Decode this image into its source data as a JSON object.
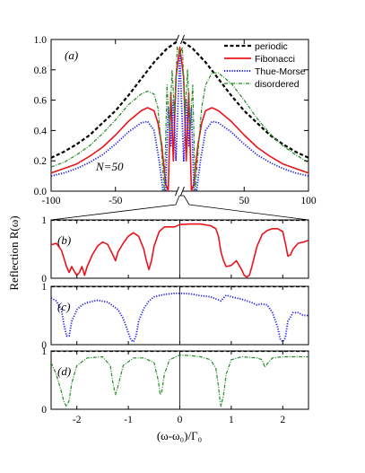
{
  "colors": {
    "periodic": "#000000",
    "fibonacci": "#e8141c",
    "thue_morse": "#1a1ae8",
    "disordered": "#228b22"
  },
  "labels": {
    "ylabel": "Reflection R(ω)",
    "xlabel": "(ω-ω₀)/Γ₀",
    "N": "N=50"
  },
  "chart_data": [
    {
      "id": "a",
      "type": "line",
      "panel_label": "(a)",
      "annotation": "N=50",
      "xlim": [
        -100,
        100
      ],
      "ylim": [
        0,
        1.0
      ],
      "xticks": [
        -100,
        -50,
        0,
        50,
        100
      ],
      "xtick_labels": [
        "-100",
        "-50",
        "",
        "50",
        "100"
      ],
      "yticks": [
        0,
        0.2,
        0.4,
        0.6,
        0.8,
        1.0
      ],
      "ytick_labels": [
        "0.0",
        "0.2",
        "0.4",
        "0.6",
        "0.8",
        "1.0"
      ],
      "axis_break": "at x=0 on both horizontal axes",
      "legend_position": "top-right",
      "series": [
        {
          "name": "periodic",
          "key": "periodic",
          "style": "dashed",
          "x": [
            -100,
            -90,
            -80,
            -70,
            -60,
            -50,
            -40,
            -30,
            -20,
            -10,
            0,
            10,
            20,
            30,
            40,
            50,
            60,
            70,
            80,
            90,
            100
          ],
          "y": [
            0.22,
            0.26,
            0.31,
            0.37,
            0.45,
            0.53,
            0.63,
            0.74,
            0.85,
            0.94,
            1.0,
            0.94,
            0.85,
            0.74,
            0.63,
            0.53,
            0.45,
            0.37,
            0.31,
            0.26,
            0.22
          ]
        },
        {
          "name": "Fibonacci",
          "key": "fibonacci",
          "style": "solid",
          "x": [
            -100,
            -90,
            -80,
            -70,
            -60,
            -50,
            -40,
            -30,
            -25,
            -20,
            -17,
            -14,
            -11,
            -9,
            -7,
            -5,
            -3,
            0,
            3,
            5,
            7,
            9,
            11,
            14,
            17,
            20,
            25,
            30,
            40,
            50,
            60,
            70,
            80,
            90,
            100
          ],
          "y": [
            0.12,
            0.15,
            0.18,
            0.23,
            0.29,
            0.37,
            0.46,
            0.53,
            0.55,
            0.53,
            0.45,
            0.3,
            0.05,
            0.0,
            0.65,
            0.2,
            0.75,
            0.95,
            0.75,
            0.2,
            0.65,
            0.0,
            0.05,
            0.3,
            0.45,
            0.53,
            0.55,
            0.53,
            0.46,
            0.37,
            0.29,
            0.23,
            0.18,
            0.15,
            0.12
          ]
        },
        {
          "name": "Thue-Morse",
          "key": "thue_morse",
          "style": "dotted",
          "x": [
            -100,
            -90,
            -80,
            -70,
            -60,
            -50,
            -40,
            -30,
            -25,
            -20,
            -16,
            -13,
            -11,
            -9,
            -7,
            -5,
            -3,
            0,
            3,
            5,
            7,
            9,
            11,
            13,
            16,
            20,
            25,
            30,
            40,
            50,
            60,
            70,
            80,
            90,
            100
          ],
          "y": [
            0.1,
            0.12,
            0.15,
            0.19,
            0.24,
            0.31,
            0.39,
            0.45,
            0.46,
            0.4,
            0.2,
            0.0,
            0.0,
            0.55,
            0.3,
            0.6,
            0.2,
            0.9,
            0.2,
            0.6,
            0.3,
            0.55,
            0.0,
            0.0,
            0.2,
            0.4,
            0.46,
            0.45,
            0.39,
            0.31,
            0.24,
            0.19,
            0.15,
            0.12,
            0.1
          ]
        },
        {
          "name": "disordered",
          "key": "disordered",
          "style": "dashdot",
          "x": [
            -100,
            -90,
            -80,
            -70,
            -60,
            -50,
            -40,
            -30,
            -25,
            -20,
            -17,
            -15,
            -12,
            -10,
            -8,
            -6,
            -4,
            -2,
            0,
            2,
            4,
            6,
            8,
            10,
            12,
            15,
            17,
            20,
            25,
            30,
            40,
            50,
            60,
            70,
            80,
            90,
            100
          ],
          "y": [
            0.16,
            0.19,
            0.24,
            0.3,
            0.38,
            0.47,
            0.57,
            0.64,
            0.66,
            0.64,
            0.55,
            0.35,
            0.0,
            0.7,
            0.4,
            0.8,
            0.5,
            0.95,
            0.9,
            0.95,
            0.5,
            0.8,
            0.4,
            0.7,
            0.0,
            0.35,
            0.55,
            0.7,
            0.78,
            0.78,
            0.71,
            0.6,
            0.48,
            0.38,
            0.3,
            0.24,
            0.19
          ]
        }
      ]
    },
    {
      "id": "b",
      "type": "line",
      "panel_label": "(b)",
      "xlim": [
        -2.5,
        2.5
      ],
      "ylim": [
        0,
        1
      ],
      "yticks": [
        0,
        1
      ],
      "series": [
        {
          "name": "periodic",
          "key": "periodic",
          "style": "dashed",
          "x": [
            -2.5,
            2.5
          ],
          "y": [
            1.0,
            1.0
          ]
        },
        {
          "name": "Fibonacci",
          "key": "fibonacci",
          "style": "solid",
          "x": [
            -2.5,
            -2.4,
            -2.3,
            -2.2,
            -2.15,
            -2.1,
            -2.05,
            -2.0,
            -1.95,
            -1.9,
            -1.85,
            -1.8,
            -1.7,
            -1.6,
            -1.5,
            -1.4,
            -1.3,
            -1.25,
            -1.2,
            -1.1,
            -1.0,
            -0.9,
            -0.8,
            -0.7,
            -0.65,
            -0.6,
            -0.55,
            -0.5,
            -0.4,
            -0.3,
            -0.2,
            -0.1,
            0,
            0.2,
            0.4,
            0.6,
            0.7,
            0.75,
            0.8,
            0.85,
            0.9,
            1.0,
            1.1,
            1.2,
            1.25,
            1.3,
            1.35,
            1.4,
            1.5,
            1.6,
            1.7,
            1.8,
            1.9,
            2.0,
            2.05,
            2.1,
            2.15,
            2.2,
            2.3,
            2.4,
            2.5
          ],
          "y": [
            0.57,
            0.6,
            0.48,
            0.2,
            0.1,
            0.2,
            0.12,
            0.05,
            0.1,
            0.2,
            0.05,
            0.2,
            0.4,
            0.55,
            0.62,
            0.58,
            0.4,
            0.3,
            0.45,
            0.6,
            0.72,
            0.78,
            0.72,
            0.5,
            0.3,
            0.15,
            0.3,
            0.55,
            0.8,
            0.88,
            0.88,
            0.88,
            0.92,
            0.93,
            0.93,
            0.9,
            0.85,
            0.72,
            0.45,
            0.3,
            0.2,
            0.22,
            0.3,
            0.15,
            0.05,
            0.02,
            0.05,
            0.2,
            0.55,
            0.75,
            0.82,
            0.85,
            0.85,
            0.8,
            0.6,
            0.38,
            0.4,
            0.5,
            0.6,
            0.62,
            0.65
          ]
        }
      ]
    },
    {
      "id": "c",
      "type": "line",
      "panel_label": "(c)",
      "xlim": [
        -2.5,
        2.5
      ],
      "ylim": [
        0,
        1
      ],
      "yticks": [
        0,
        1
      ],
      "series": [
        {
          "name": "periodic",
          "key": "periodic",
          "style": "dashed",
          "x": [
            -2.5,
            2.5
          ],
          "y": [
            1.0,
            1.0
          ]
        },
        {
          "name": "Thue-Morse",
          "key": "thue_morse",
          "style": "dotted",
          "x": [
            -2.5,
            -2.4,
            -2.3,
            -2.25,
            -2.2,
            -2.15,
            -2.1,
            -2.0,
            -1.9,
            -1.8,
            -1.6,
            -1.4,
            -1.2,
            -1.1,
            -1.0,
            -0.95,
            -0.9,
            -0.85,
            -0.8,
            -0.7,
            -0.6,
            -0.5,
            -0.3,
            -0.1,
            0,
            0.2,
            0.4,
            0.6,
            0.8,
            0.9,
            1.0,
            1.2,
            1.4,
            1.5,
            1.6,
            1.7,
            1.8,
            1.9,
            1.95,
            2.0,
            2.05,
            2.1,
            2.2,
            2.3,
            2.4,
            2.5
          ],
          "y": [
            0.8,
            0.75,
            0.6,
            0.35,
            0.15,
            0.15,
            0.4,
            0.6,
            0.68,
            0.72,
            0.76,
            0.73,
            0.6,
            0.45,
            0.2,
            0.08,
            0.05,
            0.15,
            0.4,
            0.62,
            0.75,
            0.82,
            0.86,
            0.88,
            0.88,
            0.87,
            0.84,
            0.82,
            0.75,
            0.85,
            0.82,
            0.78,
            0.72,
            0.68,
            0.7,
            0.68,
            0.55,
            0.3,
            0.1,
            0.05,
            0.12,
            0.4,
            0.55,
            0.55,
            0.5,
            0.5
          ]
        }
      ]
    },
    {
      "id": "d",
      "type": "line",
      "panel_label": "(d)",
      "xlim": [
        -2.5,
        2.5
      ],
      "ylim": [
        0,
        1
      ],
      "yticks": [
        0,
        1
      ],
      "xticks": [
        -2,
        -1,
        0,
        1,
        2
      ],
      "xtick_labels": [
        "-2",
        "-1",
        "0",
        "1",
        "2"
      ],
      "xlabel": "(ω-ω₀)/Γ₀",
      "series": [
        {
          "name": "periodic",
          "key": "periodic",
          "style": "dashed",
          "x": [
            -2.5,
            2.5
          ],
          "y": [
            1.0,
            1.0
          ]
        },
        {
          "name": "disordered",
          "key": "disordered",
          "style": "dashdot",
          "x": [
            -2.5,
            -2.4,
            -2.3,
            -2.25,
            -2.2,
            -2.15,
            -2.1,
            -2.0,
            -1.8,
            -1.5,
            -1.35,
            -1.3,
            -1.25,
            -1.2,
            -1.1,
            -0.9,
            -0.7,
            -0.5,
            -0.42,
            -0.38,
            -0.35,
            -0.3,
            -0.2,
            0,
            0.2,
            0.4,
            0.6,
            0.7,
            0.75,
            0.78,
            0.8,
            0.85,
            0.9,
            1.0,
            1.2,
            1.5,
            1.6,
            1.65,
            1.7,
            1.8,
            2.0,
            2.2,
            2.4,
            2.5
          ],
          "y": [
            0.8,
            0.6,
            0.3,
            0.12,
            0.05,
            0.15,
            0.45,
            0.75,
            0.88,
            0.9,
            0.75,
            0.45,
            0.25,
            0.4,
            0.75,
            0.88,
            0.88,
            0.8,
            0.5,
            0.25,
            0.3,
            0.6,
            0.85,
            0.93,
            0.92,
            0.9,
            0.85,
            0.7,
            0.4,
            0.15,
            0.05,
            0.25,
            0.6,
            0.85,
            0.9,
            0.88,
            0.85,
            0.72,
            0.78,
            0.88,
            0.9,
            0.9,
            0.9,
            0.9
          ]
        }
      ]
    }
  ]
}
